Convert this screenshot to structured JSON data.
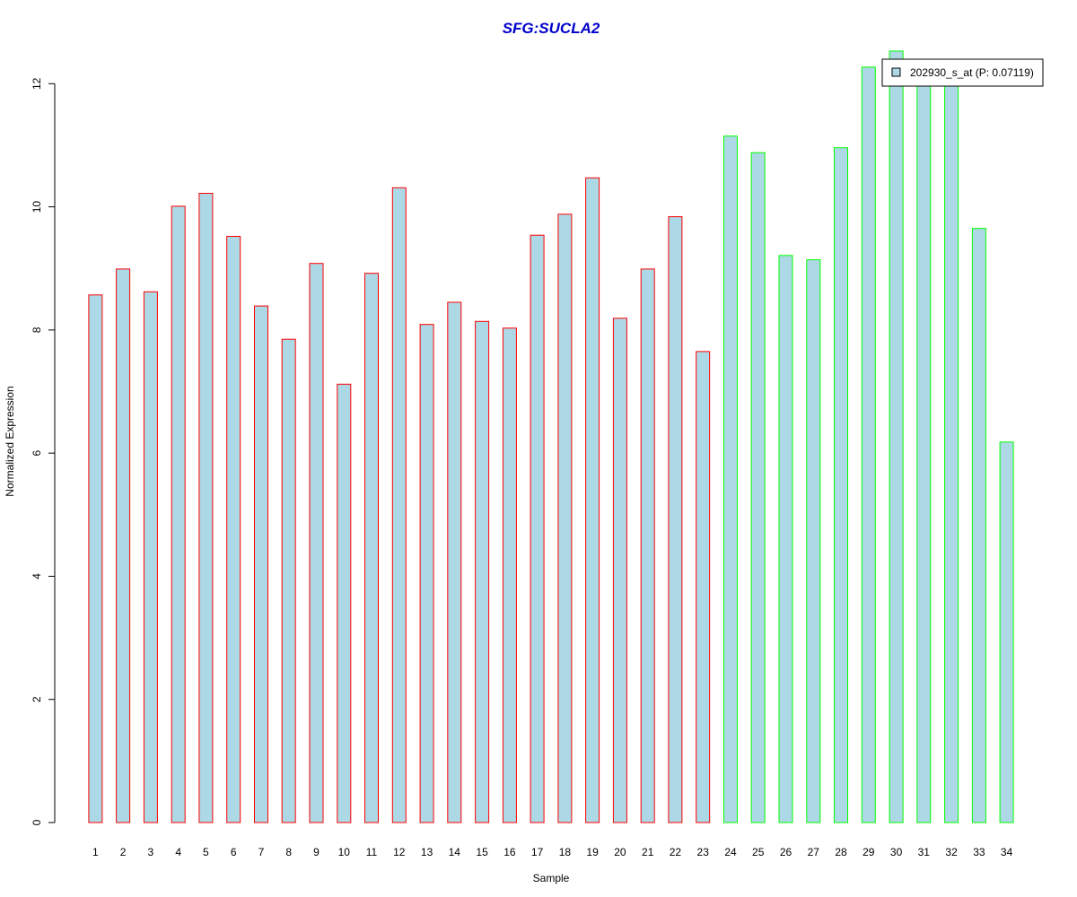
{
  "chart_data": {
    "type": "bar",
    "title": "SFG:SUCLA2",
    "xlabel": "Sample",
    "ylabel": "Normalized Expression",
    "categories": [
      "1",
      "2",
      "3",
      "4",
      "5",
      "6",
      "7",
      "8",
      "9",
      "10",
      "11",
      "12",
      "13",
      "14",
      "15",
      "16",
      "17",
      "18",
      "19",
      "20",
      "21",
      "22",
      "23",
      "24",
      "25",
      "26",
      "27",
      "28",
      "29",
      "30",
      "31",
      "32",
      "33",
      "34"
    ],
    "series": [
      {
        "name": "202930_s_at (P: 0.07119)",
        "values": [
          8.57,
          8.99,
          8.62,
          10.01,
          10.22,
          9.52,
          8.39,
          7.85,
          9.08,
          7.12,
          8.92,
          10.31,
          8.09,
          8.45,
          8.14,
          8.03,
          9.54,
          9.88,
          10.47,
          8.19,
          8.99,
          9.84,
          7.65,
          11.15,
          10.88,
          9.21,
          9.14,
          10.96,
          12.27,
          12.53,
          12.12,
          12.08,
          9.65,
          6.18
        ]
      }
    ],
    "bar_groups": [
      {
        "from": 1,
        "to": 23,
        "border": "#ff0000"
      },
      {
        "from": 24,
        "to": 34,
        "border": "#00ff00"
      }
    ],
    "ylim": [
      0,
      12.5
    ],
    "yticks": [
      0,
      2,
      4,
      6,
      8,
      10,
      12
    ],
    "grid": false,
    "legend_position": "top-right",
    "colors": {
      "bar_fill": "#add8e6",
      "title": "#0000cc"
    }
  }
}
